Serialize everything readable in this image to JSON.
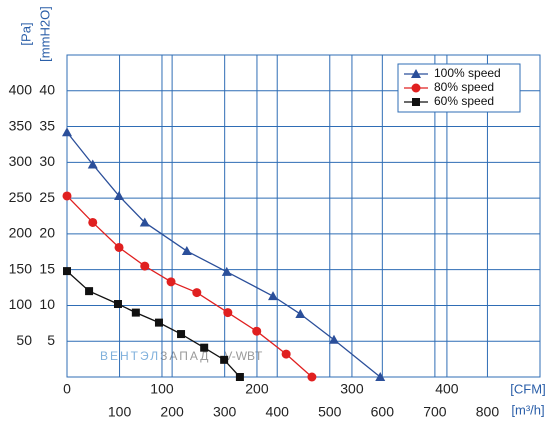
{
  "chart_data": {
    "type": "line",
    "x_label": "[m³/h]",
    "x2_label": "[CFM]",
    "y_label": "[Pa]",
    "y2_label": "[mmH2O]",
    "watermark": [
      "ВЕНТЭЛ",
      "ЗАПАД",
      "V-WBT"
    ],
    "xlim": [
      0,
      900
    ],
    "xticks": [
      100,
      200,
      300,
      400,
      500,
      600,
      700,
      800
    ],
    "x2lim": [
      0,
      498
    ],
    "x2ticks": [
      0,
      100,
      200,
      300,
      400
    ],
    "ylim": [
      0,
      450
    ],
    "yticks": [
      50,
      100,
      150,
      200,
      250,
      300,
      350,
      400
    ],
    "y2lim": [
      0,
      45
    ],
    "y2ticks": [
      5,
      10,
      15,
      20,
      25,
      30,
      35,
      40
    ],
    "grid": true,
    "legend": "upper right",
    "series": [
      {
        "name": "100%  speed",
        "color": "#2b4f9a",
        "marker": "triangle",
        "x": [
          0,
          49,
          99,
          148,
          228,
          304,
          392,
          444,
          508,
          596
        ],
        "values": [
          342,
          297,
          253,
          216,
          176,
          147,
          113,
          88,
          52,
          0
        ]
      },
      {
        "name": "80%  speed",
        "color": "#e02020",
        "marker": "circle",
        "x": [
          0,
          49,
          99,
          148,
          198,
          247,
          306,
          361,
          417,
          466
        ],
        "values": [
          253,
          216,
          181,
          155,
          133,
          118,
          90,
          64,
          32,
          0
        ]
      },
      {
        "name": "60%  speed",
        "color": "#111111",
        "marker": "square",
        "x": [
          0,
          42,
          97,
          131,
          175,
          217,
          261,
          299,
          329
        ],
        "values": [
          148,
          120,
          102,
          90,
          76,
          60,
          41,
          24,
          0
        ]
      }
    ]
  }
}
